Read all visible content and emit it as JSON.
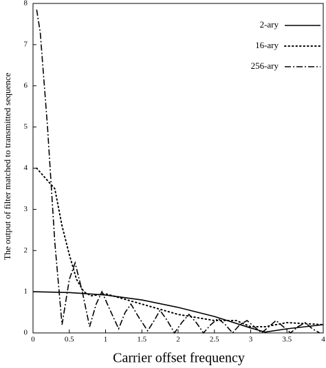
{
  "chart_data": {
    "type": "line",
    "x_label": "Carrier offset frequency",
    "y_label": "The output of filter matched to transmitted sequence",
    "xlim": [
      0,
      4
    ],
    "ylim": [
      0,
      8
    ],
    "xticks": [
      0,
      0.5,
      1,
      1.5,
      2,
      2.5,
      3,
      3.5,
      4
    ],
    "yticks": [
      0,
      1,
      2,
      3,
      4,
      5,
      6,
      7,
      8
    ],
    "legend": "top-right",
    "series": [
      {
        "name": "2-ary",
        "color": "#000000",
        "dash": "solid",
        "x": [
          0,
          0.5,
          1,
          1.5,
          2,
          2.5,
          3,
          3.2,
          3.5,
          4
        ],
        "values": [
          1,
          0.98,
          0.92,
          0.8,
          0.62,
          0.4,
          0.12,
          0.02,
          0.1,
          0.2
        ]
      },
      {
        "name": "16-ary",
        "color": "#000000",
        "dash": "dotted",
        "x": [
          0.05,
          0.2,
          0.3,
          0.4,
          0.5,
          0.6,
          0.7,
          0.8,
          1,
          1.2,
          1.5,
          2,
          2.5,
          2.8,
          3,
          3.2,
          3.5,
          4
        ],
        "values": [
          4.0,
          3.7,
          3.5,
          2.6,
          1.9,
          1.3,
          1.0,
          0.9,
          0.95,
          0.85,
          0.7,
          0.45,
          0.3,
          0.3,
          0.15,
          0.15,
          0.25,
          0.2
        ]
      },
      {
        "name": "256-ary",
        "color": "#000000",
        "dash": "dashdot",
        "x": [
          0.05,
          0.1,
          0.2,
          0.3,
          0.4,
          0.5,
          0.58,
          0.68,
          0.78,
          0.87,
          0.95,
          1.05,
          1.18,
          1.27,
          1.35,
          1.45,
          1.58,
          1.67,
          1.75,
          1.85,
          1.95,
          2.05,
          2.15,
          2.25,
          2.35,
          2.45,
          2.55,
          2.65,
          2.75,
          2.85,
          2.95,
          3.05,
          3.15,
          3.25,
          3.35,
          3.45,
          3.55,
          3.65,
          3.75,
          3.85,
          3.95
        ],
        "values": [
          7.85,
          7.3,
          5.0,
          2.2,
          0.2,
          1.3,
          1.7,
          1.0,
          0.15,
          0.7,
          1.0,
          0.6,
          0.1,
          0.5,
          0.7,
          0.4,
          0.05,
          0.3,
          0.55,
          0.3,
          0.0,
          0.25,
          0.45,
          0.25,
          0.0,
          0.2,
          0.35,
          0.2,
          0.0,
          0.2,
          0.3,
          0.15,
          0.0,
          0.15,
          0.3,
          0.15,
          0.0,
          0.15,
          0.25,
          0.1,
          0.0
        ]
      }
    ]
  }
}
